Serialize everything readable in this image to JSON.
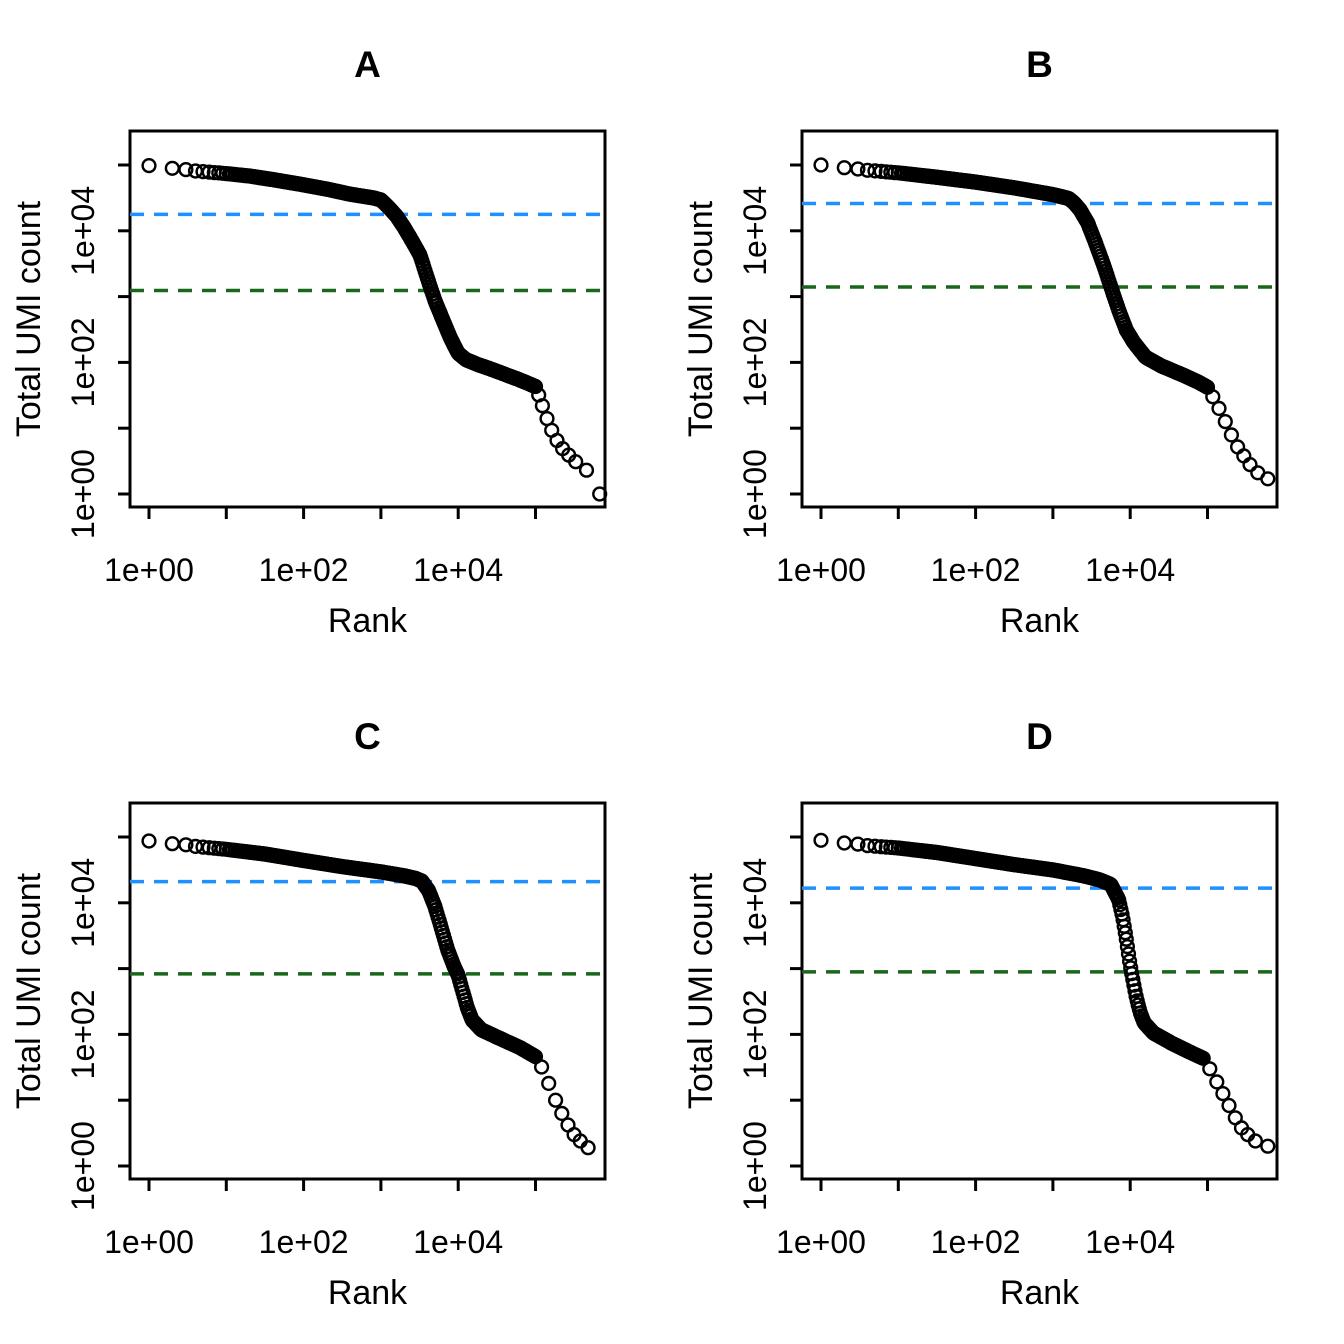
{
  "chart_data": {
    "type": "scatter",
    "title": "",
    "log_x": true,
    "log_y": true,
    "marker": "open-circle",
    "grid": false,
    "legend": "none",
    "axes": {
      "xlabel": "Rank",
      "ylabel": "Total UMI count",
      "xlim": [
        0.6,
        800000
      ],
      "ylim": [
        0.6,
        200000
      ],
      "x_ticks": [
        {
          "decade": 0,
          "label": "1e+00"
        },
        {
          "decade": 1,
          "label": ""
        },
        {
          "decade": 2,
          "label": "1e+02"
        },
        {
          "decade": 3,
          "label": ""
        },
        {
          "decade": 4,
          "label": "1e+04"
        },
        {
          "decade": 5,
          "label": ""
        }
      ],
      "y_ticks": [
        {
          "decade": 0,
          "label": "1e+00"
        },
        {
          "decade": 1,
          "label": ""
        },
        {
          "decade": 2,
          "label": "1e+02"
        },
        {
          "decade": 3,
          "label": ""
        },
        {
          "decade": 4,
          "label": "1e+04"
        },
        {
          "decade": 5,
          "label": ""
        }
      ]
    },
    "style": {
      "point_color": "#000000",
      "knee_line_color": "#1E90FF",
      "inflection_line_color": "#1a661a",
      "line_style": "dashed"
    },
    "panels": [
      {
        "label": "A",
        "knee_threshold": 17800,
        "inflection_threshold": 1240,
        "curve": [
          [
            1,
            98000
          ],
          [
            2,
            89000
          ],
          [
            3,
            85000
          ],
          [
            4,
            81000
          ],
          [
            6,
            78000
          ],
          [
            10,
            74000
          ],
          [
            20,
            68000
          ],
          [
            40,
            60000
          ],
          [
            100,
            50000
          ],
          [
            200,
            43000
          ],
          [
            400,
            36000
          ],
          [
            800,
            31600
          ],
          [
            1000,
            29500
          ],
          [
            1250,
            22900
          ],
          [
            1600,
            16600
          ],
          [
            2000,
            11200
          ],
          [
            2500,
            7200
          ],
          [
            3200,
            4300
          ],
          [
            4000,
            1900
          ],
          [
            5000,
            870
          ],
          [
            6300,
            450
          ],
          [
            8000,
            230
          ],
          [
            10000,
            138
          ],
          [
            12600,
            110
          ],
          [
            17800,
            93
          ],
          [
            25000,
            81
          ],
          [
            40000,
            66
          ],
          [
            63000,
            54
          ],
          [
            100000,
            43
          ]
        ],
        "tail": [
          [
            110000,
            32
          ],
          [
            123000,
            22
          ],
          [
            141000,
            14
          ],
          [
            162000,
            9.3
          ],
          [
            190000,
            6.5
          ],
          [
            224000,
            4.9
          ],
          [
            269000,
            3.9
          ],
          [
            331000,
            3.1
          ],
          [
            457000,
            2.3
          ],
          [
            676000,
            1.0
          ]
        ]
      },
      {
        "label": "B",
        "knee_threshold": 26000,
        "inflection_threshold": 1400,
        "curve": [
          [
            1,
            100000
          ],
          [
            2,
            91000
          ],
          [
            3,
            87000
          ],
          [
            4,
            83000
          ],
          [
            10,
            76000
          ],
          [
            32,
            65000
          ],
          [
            100,
            55000
          ],
          [
            316,
            45000
          ],
          [
            1000,
            35500
          ],
          [
            1600,
            31000
          ],
          [
            1860,
            26900
          ],
          [
            2240,
            20900
          ],
          [
            2820,
            13200
          ],
          [
            3550,
            6600
          ],
          [
            4470,
            3160
          ],
          [
            5620,
            1410
          ],
          [
            7080,
            630
          ],
          [
            8910,
            310
          ],
          [
            11200,
            200
          ],
          [
            15800,
            120
          ],
          [
            25000,
            89
          ],
          [
            50000,
            63
          ],
          [
            79000,
            49
          ],
          [
            100000,
            42
          ]
        ],
        "tail": [
          [
            117000,
            30
          ],
          [
            141000,
            20
          ],
          [
            170000,
            12.6
          ],
          [
            204000,
            7.9
          ],
          [
            245000,
            5.2
          ],
          [
            295000,
            3.8
          ],
          [
            355000,
            2.8
          ],
          [
            447000,
            2.1
          ],
          [
            603000,
            1.7
          ]
        ]
      },
      {
        "label": "C",
        "knee_threshold": 21000,
        "inflection_threshold": 830,
        "curve": [
          [
            1,
            87000
          ],
          [
            2,
            79000
          ],
          [
            3,
            76000
          ],
          [
            4,
            72000
          ],
          [
            10,
            65000
          ],
          [
            32,
            55000
          ],
          [
            100,
            44000
          ],
          [
            316,
            35500
          ],
          [
            1000,
            29500
          ],
          [
            2000,
            25700
          ],
          [
            2820,
            23400
          ],
          [
            3390,
            21400
          ],
          [
            4170,
            15100
          ],
          [
            5010,
            8700
          ],
          [
            6030,
            4200
          ],
          [
            7240,
            2000
          ],
          [
            8710,
            1120
          ],
          [
            10000,
            790
          ],
          [
            11500,
            440
          ],
          [
            13200,
            250
          ],
          [
            15100,
            166
          ],
          [
            20000,
            117
          ],
          [
            31600,
            91
          ],
          [
            63000,
            63
          ],
          [
            100000,
            46
          ]
        ],
        "tail": [
          [
            120000,
            32
          ],
          [
            148000,
            18
          ],
          [
            182000,
            10
          ],
          [
            219000,
            6.3
          ],
          [
            263000,
            4.2
          ],
          [
            316000,
            3.0
          ],
          [
            380000,
            2.4
          ],
          [
            479000,
            1.9
          ]
        ]
      },
      {
        "label": "D",
        "knee_threshold": 16700,
        "inflection_threshold": 890,
        "curve": [
          [
            1,
            89000
          ],
          [
            2,
            81000
          ],
          [
            3,
            78000
          ],
          [
            4,
            74000
          ],
          [
            10,
            68000
          ],
          [
            32,
            58000
          ],
          [
            100,
            47000
          ],
          [
            316,
            38000
          ],
          [
            1000,
            31600
          ],
          [
            2510,
            25700
          ],
          [
            3980,
            22400
          ],
          [
            5620,
            19000
          ],
          [
            7080,
            11200
          ],
          [
            7940,
            6300
          ],
          [
            8910,
            2800
          ],
          [
            10000,
            1120
          ],
          [
            10960,
            630
          ],
          [
            12000,
            363
          ],
          [
            13500,
            214
          ],
          [
            15100,
            151
          ],
          [
            20000,
            105
          ],
          [
            35500,
            72
          ],
          [
            63000,
            52
          ],
          [
            89000,
            43
          ]
        ],
        "tail": [
          [
            107000,
            30
          ],
          [
            132000,
            19
          ],
          [
            158000,
            12.6
          ],
          [
            190000,
            8.3
          ],
          [
            229000,
            5.4
          ],
          [
            275000,
            3.8
          ],
          [
            331000,
            3.0
          ],
          [
            417000,
            2.4
          ],
          [
            603000,
            2.0
          ]
        ]
      }
    ]
  }
}
